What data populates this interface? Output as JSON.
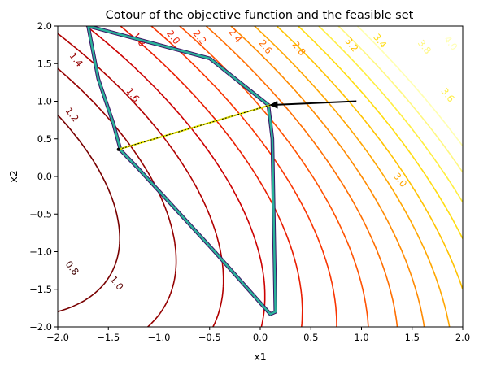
{
  "chart_data": {
    "type": "contour",
    "title": "Cotour of the objective function and the feasible set",
    "xlabel": "x1",
    "ylabel": "x2",
    "xlim": [
      -2.0,
      2.0
    ],
    "ylim": [
      -2.0,
      2.0
    ],
    "x_ticks": [
      "−2.0",
      "−1.5",
      "−1.0",
      "−0.5",
      "0.0",
      "0.5",
      "1.0",
      "1.5",
      "2.0"
    ],
    "y_ticks": [
      "−2.0",
      "−1.5",
      "−1.0",
      "−0.5",
      "0.0",
      "0.5",
      "1.0",
      "1.5",
      "2.0"
    ],
    "contour_levels": [
      {
        "level": 0.8,
        "label": "0.8",
        "color": "#3f0000",
        "label_pos": [
          -1.86,
          -1.22
        ]
      },
      {
        "level": 1.0,
        "label": "1.0",
        "color": "#5c0000",
        "label_pos": [
          -1.42,
          -1.42
        ]
      },
      {
        "level": 1.2,
        "label": "1.2",
        "color": "#780000",
        "label_pos": [
          -1.86,
          0.82
        ]
      },
      {
        "level": 1.4,
        "label": "1.4",
        "color": "#940000",
        "label_pos": [
          -1.82,
          1.55
        ]
      },
      {
        "level": 1.6,
        "label": "1.6",
        "color": "#b10000",
        "label_pos": [
          -1.26,
          1.08
        ]
      },
      {
        "level": 1.8,
        "label": "1.8",
        "color": "#cc0000",
        "label_pos": [
          -1.2,
          1.82
        ]
      },
      {
        "level": 2.0,
        "label": "2.0",
        "color": "#e81c00",
        "label_pos": [
          -0.86,
          1.85
        ]
      },
      {
        "level": 2.2,
        "label": "2.2",
        "color": "#f93400",
        "label_pos": [
          -0.6,
          1.85
        ]
      },
      {
        "level": 2.4,
        "label": "2.4",
        "color": "#ff5100",
        "label_pos": [
          -0.25,
          1.87
        ]
      },
      {
        "level": 2.6,
        "label": "2.6",
        "color": "#ff6e00",
        "label_pos": [
          0.05,
          1.72
        ]
      },
      {
        "level": 2.8,
        "label": "2.8",
        "color": "#ff8a00",
        "label_pos": [
          0.38,
          1.7
        ]
      },
      {
        "level": 3.0,
        "label": "3.0",
        "color": "#ffa600",
        "label_pos": [
          1.38,
          -0.05
        ]
      },
      {
        "level": 3.2,
        "label": "3.2",
        "color": "#ffc200",
        "label_pos": [
          0.9,
          1.75
        ]
      },
      {
        "level": 3.4,
        "label": "3.4",
        "color": "#ffdc10",
        "label_pos": [
          1.18,
          1.8
        ]
      },
      {
        "level": 3.6,
        "label": "3.6",
        "color": "#ffee40",
        "label_pos": [
          1.85,
          1.08
        ]
      },
      {
        "level": 3.8,
        "label": "3.8",
        "color": "#fff780",
        "label_pos": [
          1.62,
          1.72
        ]
      },
      {
        "level": 4.0,
        "label": "4.0",
        "color": "#ffffb0",
        "label_pos": [
          1.88,
          1.77
        ]
      }
    ],
    "feasible_set_boundary": [
      {
        "x": -1.7,
        "y": 2.0
      },
      {
        "x": -0.5,
        "y": 1.57
      },
      {
        "x": 0.08,
        "y": 0.95
      },
      {
        "x": 0.12,
        "y": 0.5
      },
      {
        "x": 0.15,
        "y": -1.8
      },
      {
        "x": 0.1,
        "y": -1.83
      },
      {
        "x": -0.45,
        "y": -1.0
      },
      {
        "x": -1.2,
        "y": 0.1
      },
      {
        "x": -1.38,
        "y": 0.35
      },
      {
        "x": -1.45,
        "y": 0.7
      },
      {
        "x": -1.6,
        "y": 1.3
      },
      {
        "x": -1.7,
        "y": 2.0
      }
    ],
    "feasible_set_colors": {
      "outer": "#3b1466",
      "inner": "#2ab39a"
    },
    "optimization_step": {
      "from": {
        "x": 0.95,
        "y": 1.0
      },
      "to": {
        "x": 0.1,
        "y": 0.95
      },
      "color": "#000000"
    },
    "projection_segment": {
      "from": {
        "x": 0.1,
        "y": 0.95
      },
      "to": {
        "x": -1.4,
        "y": 0.36
      },
      "color": "#000000",
      "highlight": "#e6e600"
    }
  }
}
